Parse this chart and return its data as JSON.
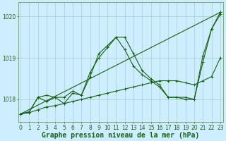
{
  "xlabel": "Graphe pression niveau de la mer (hPa)",
  "background_color": "#cceeff",
  "grid_color": "#aacccc",
  "line_color": "#1a5e1a",
  "series": [
    {
      "name": "line_straight",
      "x": [
        0,
        23
      ],
      "y": [
        1017.65,
        1020.1
      ]
    },
    {
      "name": "line_slow",
      "x": [
        0,
        1,
        2,
        3,
        4,
        5,
        6,
        7,
        8,
        9,
        10,
        11,
        12,
        13,
        14,
        15,
        16,
        17,
        18,
        19,
        20,
        21,
        22,
        23
      ],
      "y": [
        1017.65,
        1017.68,
        1017.75,
        1017.82,
        1017.85,
        1017.9,
        1017.95,
        1018.0,
        1018.05,
        1018.1,
        1018.15,
        1018.2,
        1018.25,
        1018.3,
        1018.35,
        1018.4,
        1018.45,
        1018.45,
        1018.45,
        1018.4,
        1018.35,
        1018.45,
        1018.55,
        1019.0
      ]
    },
    {
      "name": "line_peak",
      "x": [
        0,
        1,
        2,
        3,
        4,
        5,
        6,
        7,
        8,
        9,
        10,
        11,
        12,
        13,
        14,
        15,
        16,
        17,
        18,
        19,
        20,
        21,
        22,
        23
      ],
      "y": [
        1017.65,
        1017.7,
        1018.05,
        1018.1,
        1018.05,
        1018.05,
        1018.2,
        1018.1,
        1018.65,
        1019.0,
        1019.25,
        1019.5,
        1019.5,
        1019.1,
        1018.7,
        1018.5,
        1018.35,
        1018.05,
        1018.05,
        1018.05,
        1018.0,
        1019.05,
        1019.7,
        1020.1
      ]
    },
    {
      "name": "line_mid",
      "x": [
        0,
        1,
        2,
        3,
        4,
        5,
        6,
        7,
        8,
        9,
        10,
        11,
        12,
        13,
        14,
        15,
        16,
        17,
        18,
        19,
        20,
        21,
        22,
        23
      ],
      "y": [
        1017.65,
        1017.7,
        1018.05,
        1017.95,
        1018.05,
        1017.9,
        1018.15,
        1018.1,
        1018.55,
        1019.1,
        1019.3,
        1019.5,
        1019.2,
        1018.8,
        1018.6,
        1018.45,
        1018.3,
        1018.05,
        1018.05,
        1018.0,
        1018.0,
        1018.9,
        1019.7,
        1020.05
      ]
    }
  ],
  "ylim": [
    1017.45,
    1020.35
  ],
  "yticks": [
    1018,
    1019,
    1020
  ],
  "xticks": [
    0,
    1,
    2,
    3,
    4,
    5,
    6,
    7,
    8,
    9,
    10,
    11,
    12,
    13,
    14,
    15,
    16,
    17,
    18,
    19,
    20,
    21,
    22,
    23
  ],
  "marker": "+",
  "markersize": 3,
  "linewidth": 0.8,
  "xlabel_fontsize": 7,
  "tick_fontsize": 5.5
}
